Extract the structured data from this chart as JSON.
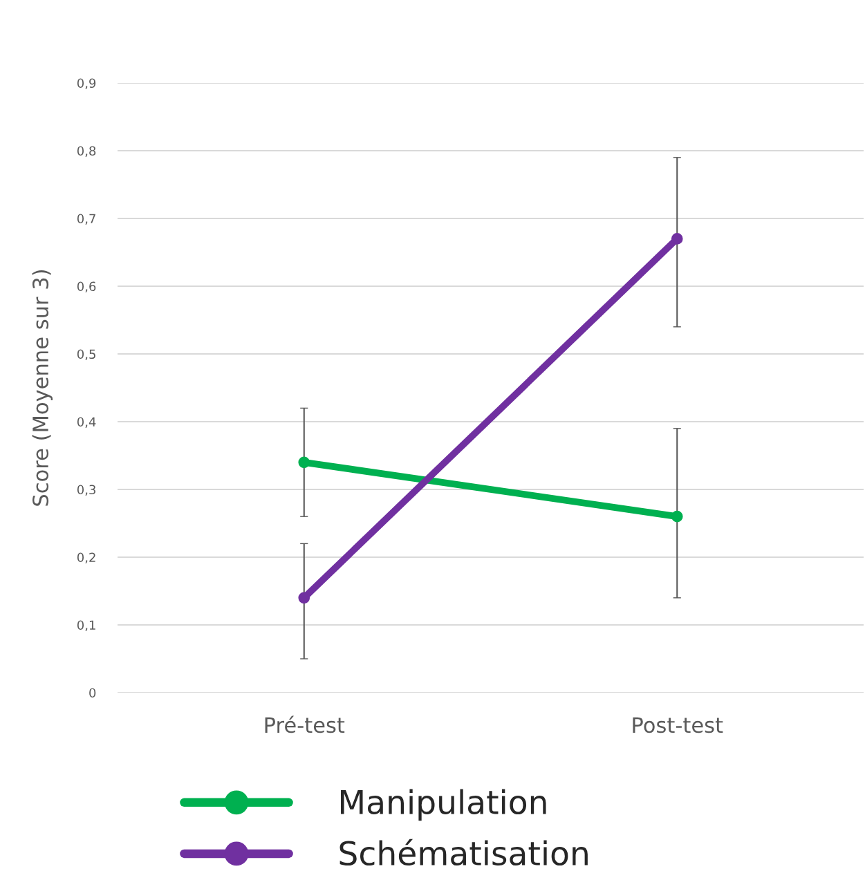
{
  "chart_data": {
    "type": "line",
    "ylabel": "Score (Moyenne sur 3)",
    "categories": [
      "Pré-test",
      "Post-test"
    ],
    "series": [
      {
        "name": "Manipulation",
        "color": "#00b050",
        "values": [
          0.34,
          0.26
        ],
        "errors": [
          [
            0.26,
            0.42
          ],
          [
            0.14,
            0.39
          ]
        ]
      },
      {
        "name": "Schématisation",
        "color": "#7030a0",
        "values": [
          0.14,
          0.67
        ],
        "errors": [
          [
            0.05,
            0.22
          ],
          [
            0.54,
            0.79
          ]
        ]
      }
    ],
    "ylim": [
      0,
      0.9
    ],
    "yticks": [
      0,
      {
        "value": 0.1,
        "label": "0,1"
      },
      {
        "value": 0.2,
        "label": "0,2"
      },
      {
        "value": 0.3,
        "label": "0,3"
      },
      {
        "value": 0.4,
        "label": "0,4"
      },
      {
        "value": 0.5,
        "label": "0,5"
      },
      {
        "value": 0.6,
        "label": "0,6"
      },
      {
        "value": 0.7,
        "label": "0,7"
      },
      {
        "value": 0.8,
        "label": "0,8"
      },
      {
        "value": 0.9,
        "label": "0,9"
      }
    ],
    "grid": "y",
    "legend": "bottom",
    "marker": "circle",
    "line_style": "solid"
  }
}
